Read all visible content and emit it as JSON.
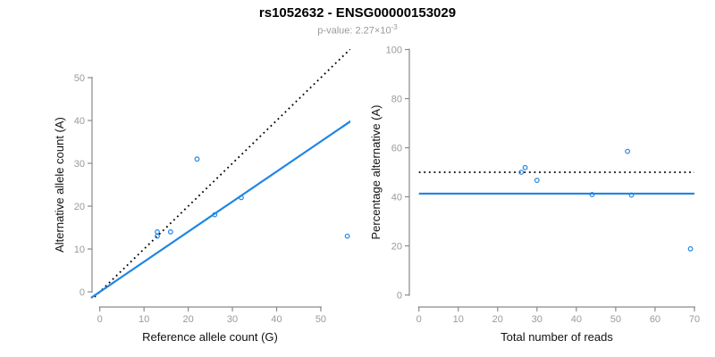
{
  "header": {
    "title": "rs1052632 - ENSG00000153029",
    "pvalue_prefix": "p-value: ",
    "pvalue_base": "2.27×10",
    "pvalue_exponent": "-3"
  },
  "colors": {
    "accent_blue": "#1E86E5",
    "line_black": "#000000",
    "axis_gray": "#8a8a8a",
    "tick_label_gray": "#9a9a9a"
  },
  "chart_data": [
    {
      "type": "scatter",
      "xlabel": "Reference allele count (G)",
      "ylabel": "Alternative allele count (A)",
      "xticks": [
        0,
        10,
        20,
        30,
        40,
        50
      ],
      "yticks": [
        0,
        10,
        20,
        30,
        40,
        50
      ],
      "xlim": [
        -2,
        57
      ],
      "ylim": [
        -2,
        57
      ],
      "grid": false,
      "points": [
        [
          13,
          13
        ],
        [
          13,
          14
        ],
        [
          16,
          14
        ],
        [
          22,
          31
        ],
        [
          26,
          18
        ],
        [
          32,
          22
        ],
        [
          56,
          13
        ]
      ],
      "lines": [
        {
          "kind": "abline",
          "slope": 1,
          "intercept": 0,
          "style": "dotted",
          "color": "#000000",
          "label": "identity"
        },
        {
          "kind": "abline",
          "slope": 0.702,
          "intercept": 0,
          "style": "solid",
          "color": "#1E86E5",
          "label": "fit"
        }
      ]
    },
    {
      "type": "scatter",
      "xlabel": "Total number of reads",
      "ylabel": "Percentage alternative (A)",
      "xticks": [
        0,
        10,
        20,
        30,
        40,
        50,
        60,
        70
      ],
      "yticks": [
        0,
        20,
        40,
        60,
        80,
        100
      ],
      "xlim": [
        -3,
        73
      ],
      "ylim": [
        -4,
        104
      ],
      "grid": false,
      "points": [
        [
          26,
          50
        ],
        [
          27,
          51.9
        ],
        [
          30,
          46.7
        ],
        [
          44,
          40.9
        ],
        [
          53,
          58.5
        ],
        [
          54,
          40.7
        ],
        [
          69,
          18.8
        ]
      ],
      "lines": [
        {
          "kind": "hline",
          "y": 50,
          "x1": 0,
          "x2": 70,
          "style": "dotted",
          "color": "#000000",
          "label": "50% expected"
        },
        {
          "kind": "hline",
          "y": 41.3,
          "x1": 0,
          "x2": 70,
          "style": "solid",
          "color": "#1E86E5",
          "label": "mean percentage"
        }
      ]
    }
  ]
}
